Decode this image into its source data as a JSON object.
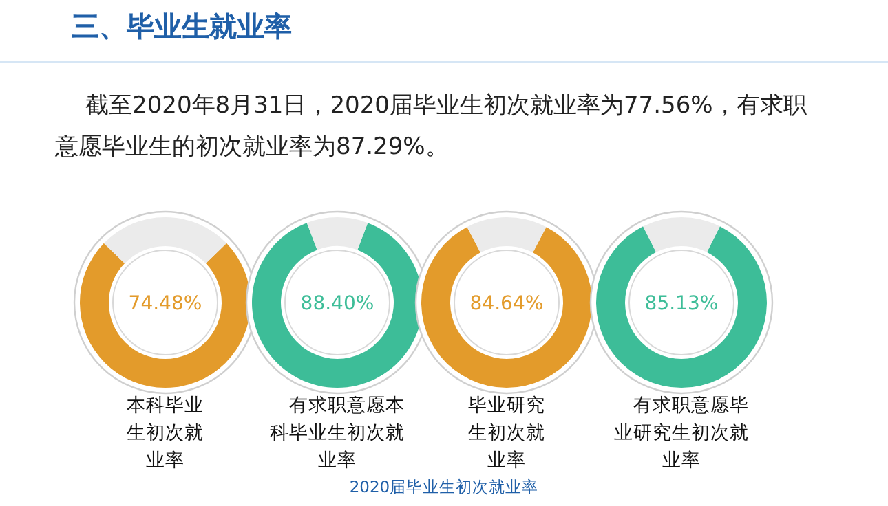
{
  "chart_data": [
    {
      "type": "other",
      "title": "三、毕业生就业率",
      "annotations": [
        "截至2020年8月31日，2020届毕业生初次就业率为77.56%，有求职意愿毕业生的初次就业率为87.29%。",
        "2020届毕业生初次就业率"
      ]
    },
    {
      "type": "donut",
      "title": "本科毕业生初次就业率",
      "categories": [
        null,
        null
      ],
      "values": [
        74.48,
        25.52
      ],
      "colors": [
        "#e39b2b",
        "#ebebeb"
      ],
      "value_labels": [
        "74.48%",
        null
      ]
    },
    {
      "type": "donut",
      "title": "有求职意愿本科毕业生初次就业率",
      "categories": [
        null,
        null
      ],
      "values": [
        88.4,
        11.6
      ],
      "colors": [
        "#3dbd98",
        "#ebebeb"
      ],
      "value_labels": [
        "88.40%",
        null
      ]
    },
    {
      "type": "donut",
      "title": "毕业研究生初次就业率",
      "categories": [
        null,
        null
      ],
      "values": [
        84.64,
        15.36
      ],
      "colors": [
        "#e39b2b",
        "#ebebeb"
      ],
      "value_labels": [
        "84.64%",
        null
      ]
    },
    {
      "type": "donut",
      "title": "有求职意愿毕业研究生初次就业率",
      "categories": [
        null,
        null
      ],
      "values": [
        85.13,
        14.87
      ],
      "colors": [
        "#3dbd98",
        "#ebebeb"
      ],
      "value_labels": [
        "85.13%",
        null
      ]
    }
  ]
}
